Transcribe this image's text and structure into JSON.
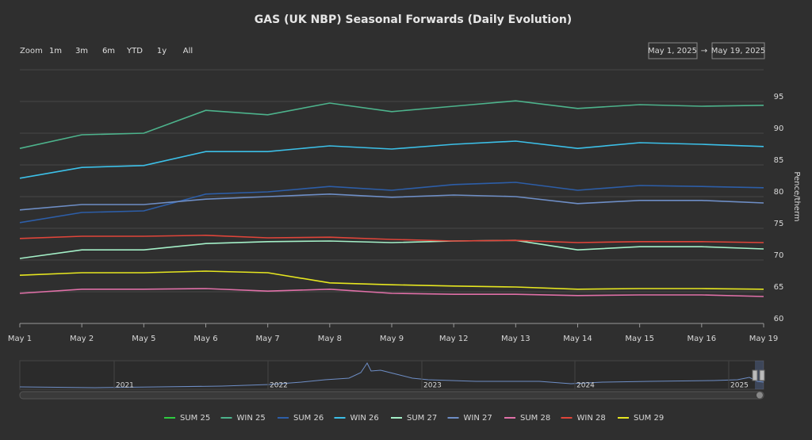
{
  "chart_data": {
    "type": "line",
    "title": "GAS (UK NBP) Seasonal Forwards (Daily Evolution)",
    "zoom_label": "Zoom",
    "zoom_buttons": [
      "1m",
      "3m",
      "6m",
      "YTD",
      "1y",
      "All"
    ],
    "date_from": "May 1, 2025",
    "date_arrow": "→",
    "date_to": "May 19, 2025",
    "y_axis_label": "Pence/therm",
    "categories": [
      "May 1",
      "May 2",
      "May 5",
      "May 6",
      "May 7",
      "May 8",
      "May 9",
      "May 12",
      "May 13",
      "May 14",
      "May 15",
      "May 16",
      "May 19"
    ],
    "ylim": [
      60,
      100
    ],
    "yticks": [
      60,
      65,
      70,
      75,
      80,
      85,
      90,
      95
    ],
    "grid": true,
    "legend": "bottom",
    "navigator_labels": [
      "2021",
      "2022",
      "2023",
      "2024",
      "2025"
    ],
    "series": [
      {
        "name": "SUM 25",
        "color": "#2ecc40",
        "values": [
          null,
          null,
          null,
          null,
          null,
          null,
          null,
          null,
          null,
          null,
          null,
          null,
          null
        ]
      },
      {
        "name": "WIN 25",
        "color": "#4db38c",
        "values": [
          87.6,
          89.75,
          90,
          93.6,
          92.9,
          94.75,
          93.4,
          94.25,
          95.1,
          93.9,
          94.5,
          94.25,
          94.4
        ]
      },
      {
        "name": "SUM 26",
        "color": "#2d5ea8",
        "values": [
          75.9,
          77.5,
          77.75,
          80.4,
          80.75,
          81.6,
          81,
          81.9,
          82.25,
          81,
          81.75,
          81.6,
          81.4
        ]
      },
      {
        "name": "WIN 26",
        "color": "#3cc0e8",
        "values": [
          82.9,
          84.6,
          84.9,
          87.1,
          87.1,
          88,
          87.5,
          88.25,
          88.75,
          87.6,
          88.5,
          88.25,
          87.9
        ]
      },
      {
        "name": "SUM 27",
        "color": "#a4f0c8",
        "values": [
          70.25,
          71.6,
          71.6,
          72.6,
          72.9,
          73,
          72.75,
          73,
          73.1,
          71.6,
          72.1,
          72.1,
          71.75
        ]
      },
      {
        "name": "WIN 27",
        "color": "#6e8ec6",
        "values": [
          77.9,
          78.75,
          78.75,
          79.6,
          80,
          80.4,
          79.9,
          80.25,
          80,
          78.9,
          79.4,
          79.4,
          79
        ]
      },
      {
        "name": "SUM 28",
        "color": "#e070a8",
        "values": [
          64.75,
          65.4,
          65.4,
          65.5,
          65.1,
          65.4,
          64.75,
          64.6,
          64.6,
          64.4,
          64.5,
          64.5,
          64.25
        ]
      },
      {
        "name": "WIN 28",
        "color": "#e0453a",
        "values": [
          73.4,
          73.75,
          73.75,
          73.9,
          73.5,
          73.6,
          73.25,
          73,
          73.1,
          72.75,
          72.9,
          72.9,
          72.75
        ]
      },
      {
        "name": "SUM 29",
        "color": "#e6e620",
        "values": [
          67.6,
          68,
          68,
          68.25,
          68,
          66.4,
          66.1,
          65.9,
          65.75,
          65.4,
          65.5,
          65.5,
          65.4
        ]
      }
    ]
  }
}
